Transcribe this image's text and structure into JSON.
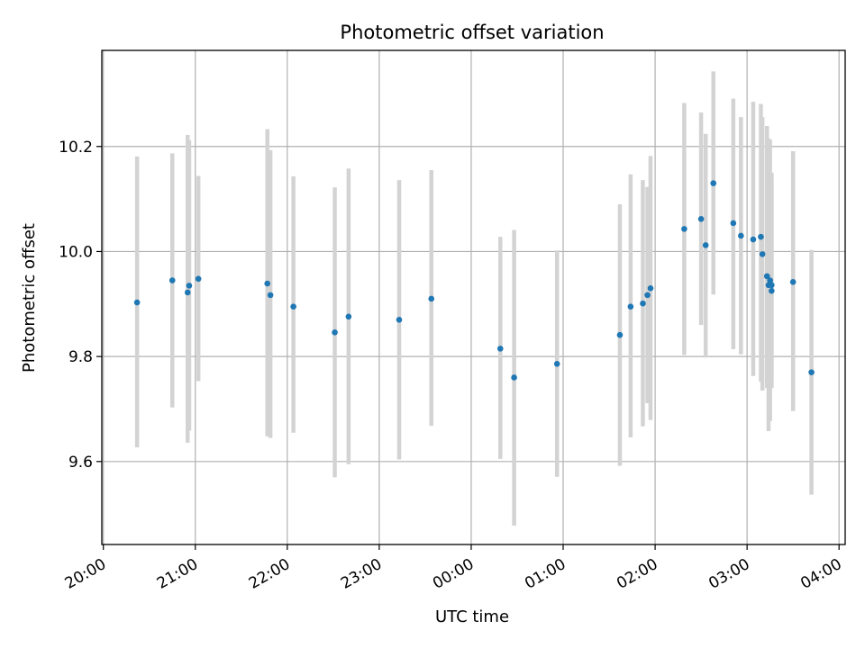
{
  "chart_data": {
    "type": "scatter",
    "title": "Photometric offset variation",
    "xlabel": "UTC time",
    "ylabel": "Photometric offset",
    "x_tick_labels": [
      "20:00",
      "21:00",
      "22:00",
      "23:00",
      "00:00",
      "01:00",
      "02:00",
      "03:00",
      "04:00"
    ],
    "y_tick_labels": [
      "9.6",
      "9.8",
      "10.0",
      "10.2"
    ],
    "y_ticks": [
      9.6,
      9.8,
      10.0,
      10.2
    ],
    "xlim": [
      "19:59",
      "04:04"
    ],
    "ylim": [
      9.442,
      10.383
    ],
    "grid": true,
    "colors": {
      "point": "#1f77b4",
      "errorbar": "#d3d3d3",
      "grid": "#b0b0b0"
    },
    "series": [
      {
        "x": [
          "20:22",
          "20:45",
          "20:55",
          "20:56",
          "21:02",
          "21:47",
          "21:49",
          "22:04",
          "22:31",
          "22:40",
          "23:13",
          "23:34",
          "00:19",
          "00:28",
          "00:56",
          "01:37",
          "01:44",
          "01:52",
          "01:55",
          "01:57",
          "02:19",
          "02:30",
          "02:33",
          "02:38",
          "02:51",
          "02:56",
          "03:04",
          "03:09",
          "03:10",
          "03:13",
          "03:14",
          "03:15",
          "03:16",
          "03:16",
          "03:30",
          "03:42"
        ],
        "y": [
          9.903,
          9.945,
          9.922,
          9.935,
          9.948,
          9.939,
          9.917,
          9.895,
          9.846,
          9.876,
          9.87,
          9.91,
          9.815,
          9.76,
          9.786,
          9.841,
          9.895,
          9.901,
          9.917,
          9.93,
          10.043,
          10.062,
          10.012,
          10.13,
          10.054,
          10.03,
          10.023,
          10.028,
          9.995,
          9.953,
          9.936,
          9.945,
          9.925,
          9.936,
          9.942,
          9.77
        ],
        "lower": [
          9.627,
          9.703,
          9.636,
          9.659,
          9.753,
          9.648,
          9.645,
          9.655,
          9.57,
          9.595,
          9.604,
          9.668,
          9.605,
          9.478,
          9.571,
          9.592,
          9.646,
          9.667,
          9.711,
          9.679,
          9.803,
          9.86,
          9.798,
          9.918,
          9.814,
          9.804,
          9.763,
          9.752,
          9.735,
          9.74,
          9.658,
          9.677,
          9.74,
          9.758,
          9.696,
          9.537
        ],
        "upper": [
          10.181,
          10.187,
          10.222,
          10.212,
          10.144,
          10.233,
          10.193,
          10.143,
          10.122,
          10.158,
          10.136,
          10.155,
          10.028,
          10.041,
          10.002,
          10.09,
          10.147,
          10.136,
          10.123,
          10.182,
          10.283,
          10.265,
          10.224,
          10.343,
          10.291,
          10.256,
          10.285,
          10.281,
          10.256,
          10.239,
          10.215,
          10.213,
          10.15,
          10.13,
          10.191,
          10.003
        ]
      }
    ]
  }
}
